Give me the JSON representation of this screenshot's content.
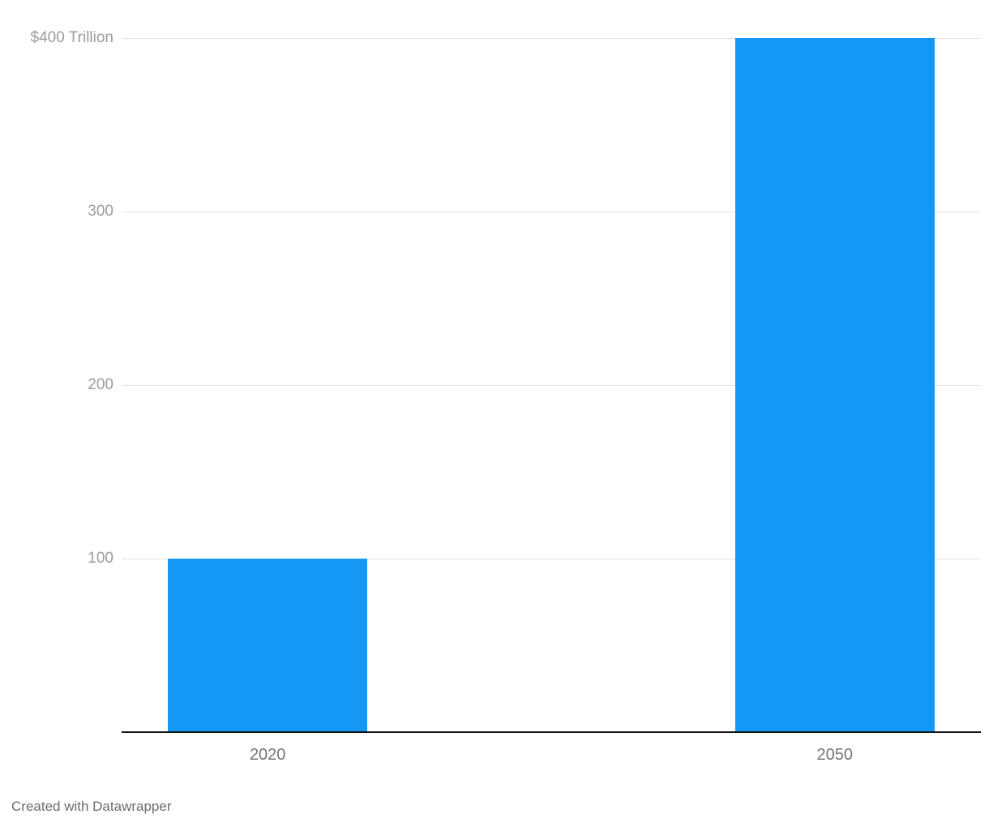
{
  "chart_data": {
    "type": "bar",
    "categories": [
      "2020",
      "2050"
    ],
    "values": [
      100,
      400
    ],
    "xlabel": "",
    "ylabel": "",
    "ylim": [
      0,
      400
    ],
    "yticks": [
      100,
      200,
      300,
      400
    ],
    "ytick_labels": [
      "100",
      "200",
      "300",
      "$400 Trillion"
    ],
    "grid": true,
    "legend_position": "none"
  },
  "footer": {
    "attribution": "Created with Datawrapper"
  },
  "colors": {
    "bar": "#1597F6",
    "gridline": "#e4e4e4",
    "baseline": "#131313",
    "ytick_label": "#9d9d9d",
    "xtick_label": "#757575",
    "footer_text": "#6d6d6d",
    "background": "#ffffff"
  }
}
